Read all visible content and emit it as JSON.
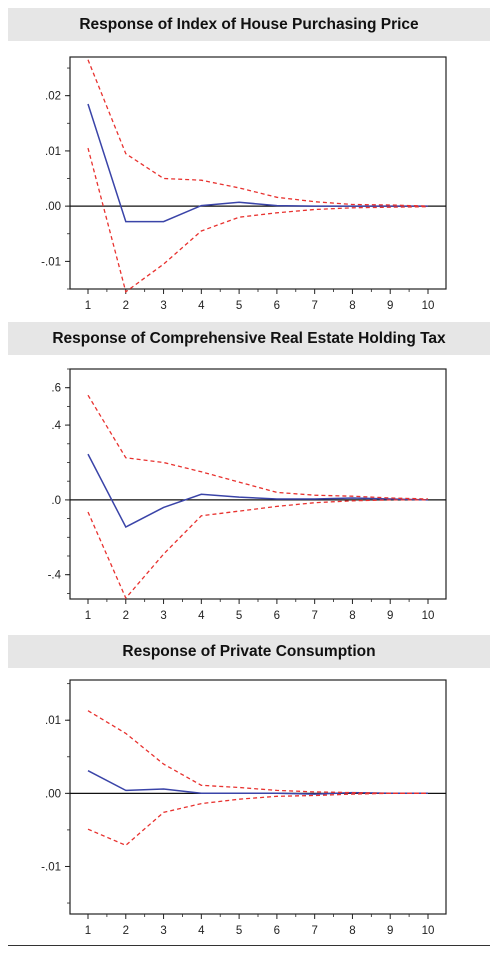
{
  "chart_data": [
    {
      "type": "line",
      "title": "Response of Index of House Purchasing Price",
      "x": [
        1,
        2,
        3,
        4,
        5,
        6,
        7,
        8,
        9,
        10
      ],
      "xticks": [
        "1",
        "2",
        "3",
        "4",
        "5",
        "6",
        "7",
        "8",
        "9",
        "10"
      ],
      "ylim": [
        -0.015,
        0.027
      ],
      "yticks": [
        {
          "value": 0.02,
          "label": ".02"
        },
        {
          "value": 0.01,
          "label": ".01"
        },
        {
          "value": 0.0,
          "label": ".00"
        },
        {
          "value": -0.01,
          "label": "-.01"
        }
      ],
      "series": [
        {
          "role": "response",
          "color": "#3a44a8",
          "style": "solid",
          "values": [
            0.0185,
            -0.0028,
            -0.0028,
            0.0001,
            0.0007,
            0.0001,
            0.0,
            0.0,
            0.0,
            0.0
          ]
        },
        {
          "role": "upper band",
          "color": "#e8322f",
          "style": "dashed",
          "values": [
            0.0265,
            0.0095,
            0.005,
            0.0047,
            0.0033,
            0.0016,
            0.0008,
            0.0003,
            0.0002,
            0.0
          ]
        },
        {
          "role": "lower band",
          "color": "#e8322f",
          "style": "dashed",
          "values": [
            0.0105,
            -0.0155,
            -0.0105,
            -0.0045,
            -0.002,
            -0.0012,
            -0.0006,
            -0.0003,
            -0.0002,
            -0.0001
          ]
        }
      ]
    },
    {
      "type": "line",
      "title": "Response of Comprehensive Real Estate Holding Tax",
      "x": [
        1,
        2,
        3,
        4,
        5,
        6,
        7,
        8,
        9,
        10
      ],
      "xticks": [
        "1",
        "2",
        "3",
        "4",
        "5",
        "6",
        "7",
        "8",
        "9",
        "10"
      ],
      "ylim": [
        -0.53,
        0.7
      ],
      "yticks": [
        {
          "value": 0.6,
          "label": ".6"
        },
        {
          "value": 0.4,
          "label": ".4"
        },
        {
          "value": 0.0,
          "label": ".0"
        },
        {
          "value": -0.4,
          "label": "-.4"
        }
      ],
      "series": [
        {
          "role": "response",
          "color": "#3a44a8",
          "style": "solid",
          "values": [
            0.245,
            -0.145,
            -0.04,
            0.03,
            0.015,
            0.005,
            0.005,
            0.01,
            0.005,
            0.0
          ]
        },
        {
          "role": "upper band",
          "color": "#e8322f",
          "style": "dashed",
          "values": [
            0.56,
            0.225,
            0.2,
            0.15,
            0.095,
            0.04,
            0.025,
            0.02,
            0.01,
            0.005
          ]
        },
        {
          "role": "lower band",
          "color": "#e8322f",
          "style": "dashed",
          "values": [
            -0.065,
            -0.525,
            -0.29,
            -0.085,
            -0.06,
            -0.035,
            -0.015,
            -0.005,
            0.0,
            0.0
          ]
        }
      ]
    },
    {
      "type": "line",
      "title": "Response of Private Consumption",
      "x": [
        1,
        2,
        3,
        4,
        5,
        6,
        7,
        8,
        9,
        10
      ],
      "xticks": [
        "1",
        "2",
        "3",
        "4",
        "5",
        "6",
        "7",
        "8",
        "9",
        "10"
      ],
      "ylim": [
        -0.0165,
        0.0155
      ],
      "yticks": [
        {
          "value": 0.01,
          "label": ".01"
        },
        {
          "value": 0.0,
          "label": ".00"
        },
        {
          "value": -0.01,
          "label": "-.01"
        }
      ],
      "series": [
        {
          "role": "response",
          "color": "#3a44a8",
          "style": "solid",
          "values": [
            0.0031,
            0.0004,
            0.0006,
            0.0,
            0.0,
            0.0,
            -0.0001,
            0.0001,
            0.0,
            0.0
          ]
        },
        {
          "role": "upper band",
          "color": "#e8322f",
          "style": "dashed",
          "values": [
            0.0113,
            0.0082,
            0.004,
            0.0011,
            0.0008,
            0.0004,
            0.0002,
            0.0001,
            0.0,
            0.0
          ]
        },
        {
          "role": "lower band",
          "color": "#e8322f",
          "style": "dashed",
          "values": [
            -0.0049,
            -0.0071,
            -0.0026,
            -0.0014,
            -0.0008,
            -0.0004,
            -0.0003,
            -0.0001,
            0.0,
            0.0
          ]
        }
      ]
    }
  ]
}
